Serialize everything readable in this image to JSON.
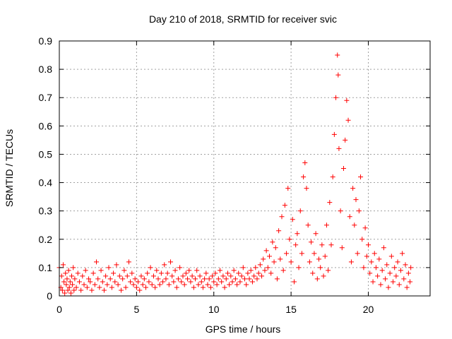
{
  "chart_data": {
    "type": "scatter",
    "title": "Day 210 of 2018, SRMTID for receiver svic",
    "xlabel": "GPS time / hours",
    "ylabel": "SRMTID / TECUs",
    "xlim": [
      0,
      24
    ],
    "ylim": [
      0,
      0.9
    ],
    "x_ticks": [
      0,
      5,
      10,
      15,
      20
    ],
    "y_ticks": [
      0,
      0.1,
      0.2,
      0.3,
      0.4,
      0.5,
      0.6,
      0.7,
      0.8,
      0.9
    ],
    "x_tick_labels": [
      "0",
      "5",
      "10",
      "15",
      "20"
    ],
    "y_tick_labels": [
      "0",
      "0.1",
      "0.2",
      "0.3",
      "0.4",
      "0.5",
      "0.6",
      "0.7",
      "0.8",
      "0.9"
    ],
    "grid": true,
    "marker": "plus",
    "color": "#ff0000",
    "series": [
      {
        "name": "SRMTID",
        "points": [
          [
            0.0,
            0.1
          ],
          [
            0.1,
            0.03
          ],
          [
            0.15,
            0.07
          ],
          [
            0.2,
            0.02
          ],
          [
            0.25,
            0.11
          ],
          [
            0.3,
            0.05
          ],
          [
            0.35,
            0.01
          ],
          [
            0.4,
            0.08
          ],
          [
            0.45,
            0.04
          ],
          [
            0.5,
            0.06
          ],
          [
            0.55,
            0.02
          ],
          [
            0.6,
            0.09
          ],
          [
            0.65,
            0.03
          ],
          [
            0.7,
            0.05
          ],
          [
            0.75,
            0.01
          ],
          [
            0.8,
            0.07
          ],
          [
            0.85,
            0.04
          ],
          [
            0.9,
            0.1
          ],
          [
            0.95,
            0.02
          ],
          [
            1.0,
            0.06
          ],
          [
            1.1,
            0.03
          ],
          [
            1.2,
            0.08
          ],
          [
            1.3,
            0.05
          ],
          [
            1.4,
            0.02
          ],
          [
            1.5,
            0.07
          ],
          [
            1.6,
            0.04
          ],
          [
            1.7,
            0.09
          ],
          [
            1.8,
            0.03
          ],
          [
            1.9,
            0.06
          ],
          [
            2.0,
            0.05
          ],
          [
            2.1,
            0.02
          ],
          [
            2.2,
            0.08
          ],
          [
            2.3,
            0.04
          ],
          [
            2.4,
            0.12
          ],
          [
            2.5,
            0.06
          ],
          [
            2.6,
            0.03
          ],
          [
            2.7,
            0.09
          ],
          [
            2.8,
            0.05
          ],
          [
            2.9,
            0.02
          ],
          [
            3.0,
            0.07
          ],
          [
            3.1,
            0.04
          ],
          [
            3.2,
            0.1
          ],
          [
            3.3,
            0.06
          ],
          [
            3.4,
            0.03
          ],
          [
            3.5,
            0.08
          ],
          [
            3.6,
            0.05
          ],
          [
            3.7,
            0.11
          ],
          [
            3.8,
            0.04
          ],
          [
            3.9,
            0.07
          ],
          [
            4.0,
            0.02
          ],
          [
            4.1,
            0.06
          ],
          [
            4.2,
            0.09
          ],
          [
            4.3,
            0.03
          ],
          [
            4.4,
            0.07
          ],
          [
            4.5,
            0.12
          ],
          [
            4.6,
            0.05
          ],
          [
            4.7,
            0.08
          ],
          [
            4.8,
            0.04
          ],
          [
            4.9,
            0.06
          ],
          [
            5.0,
            0.03
          ],
          [
            5.1,
            0.05
          ],
          [
            5.2,
            0.02
          ],
          [
            5.3,
            0.07
          ],
          [
            5.4,
            0.04
          ],
          [
            5.5,
            0.06
          ],
          [
            5.6,
            0.03
          ],
          [
            5.7,
            0.08
          ],
          [
            5.8,
            0.05
          ],
          [
            5.9,
            0.1
          ],
          [
            6.0,
            0.04
          ],
          [
            6.1,
            0.07
          ],
          [
            6.2,
            0.03
          ],
          [
            6.3,
            0.09
          ],
          [
            6.4,
            0.06
          ],
          [
            6.5,
            0.04
          ],
          [
            6.6,
            0.08
          ],
          [
            6.7,
            0.05
          ],
          [
            6.8,
            0.11
          ],
          [
            6.9,
            0.06
          ],
          [
            7.0,
            0.08
          ],
          [
            7.1,
            0.04
          ],
          [
            7.2,
            0.12
          ],
          [
            7.3,
            0.07
          ],
          [
            7.4,
            0.05
          ],
          [
            7.5,
            0.09
          ],
          [
            7.6,
            0.03
          ],
          [
            7.7,
            0.06
          ],
          [
            7.8,
            0.1
          ],
          [
            7.9,
            0.05
          ],
          [
            8.0,
            0.07
          ],
          [
            8.1,
            0.04
          ],
          [
            8.2,
            0.08
          ],
          [
            8.3,
            0.06
          ],
          [
            8.4,
            0.09
          ],
          [
            8.5,
            0.05
          ],
          [
            8.6,
            0.07
          ],
          [
            8.7,
            0.03
          ],
          [
            8.8,
            0.06
          ],
          [
            8.9,
            0.09
          ],
          [
            9.0,
            0.04
          ],
          [
            9.1,
            0.07
          ],
          [
            9.2,
            0.05
          ],
          [
            9.3,
            0.03
          ],
          [
            9.4,
            0.06
          ],
          [
            9.5,
            0.08
          ],
          [
            9.6,
            0.04
          ],
          [
            9.7,
            0.06
          ],
          [
            9.8,
            0.03
          ],
          [
            9.9,
            0.07
          ],
          [
            10.0,
            0.05
          ],
          [
            10.1,
            0.08
          ],
          [
            10.2,
            0.04
          ],
          [
            10.3,
            0.06
          ],
          [
            10.4,
            0.09
          ],
          [
            10.5,
            0.05
          ],
          [
            10.6,
            0.07
          ],
          [
            10.7,
            0.03
          ],
          [
            10.8,
            0.06
          ],
          [
            10.9,
            0.08
          ],
          [
            11.0,
            0.04
          ],
          [
            11.1,
            0.07
          ],
          [
            11.2,
            0.05
          ],
          [
            11.3,
            0.09
          ],
          [
            11.4,
            0.06
          ],
          [
            11.5,
            0.04
          ],
          [
            11.6,
            0.08
          ],
          [
            11.7,
            0.05
          ],
          [
            11.8,
            0.07
          ],
          [
            11.9,
            0.1
          ],
          [
            12.0,
            0.06
          ],
          [
            12.1,
            0.04
          ],
          [
            12.2,
            0.08
          ],
          [
            12.3,
            0.06
          ],
          [
            12.4,
            0.09
          ],
          [
            12.5,
            0.05
          ],
          [
            12.6,
            0.07
          ],
          [
            12.7,
            0.1
          ],
          [
            12.8,
            0.06
          ],
          [
            12.9,
            0.08
          ],
          [
            13.0,
            0.11
          ],
          [
            13.1,
            0.07
          ],
          [
            13.2,
            0.13
          ],
          [
            13.3,
            0.09
          ],
          [
            13.4,
            0.16
          ],
          [
            13.5,
            0.1
          ],
          [
            13.6,
            0.14
          ],
          [
            13.7,
            0.08
          ],
          [
            13.8,
            0.19
          ],
          [
            13.9,
            0.12
          ],
          [
            14.0,
            0.17
          ],
          [
            14.1,
            0.06
          ],
          [
            14.2,
            0.23
          ],
          [
            14.3,
            0.13
          ],
          [
            14.4,
            0.28
          ],
          [
            14.5,
            0.09
          ],
          [
            14.6,
            0.32
          ],
          [
            14.7,
            0.15
          ],
          [
            14.8,
            0.38
          ],
          [
            14.9,
            0.2
          ],
          [
            15.0,
            0.12
          ],
          [
            15.1,
            0.27
          ],
          [
            15.2,
            0.05
          ],
          [
            15.3,
            0.18
          ],
          [
            15.4,
            0.22
          ],
          [
            15.5,
            0.1
          ],
          [
            15.6,
            0.3
          ],
          [
            15.7,
            0.15
          ],
          [
            15.8,
            0.42
          ],
          [
            15.9,
            0.47
          ],
          [
            16.0,
            0.38
          ],
          [
            16.1,
            0.25
          ],
          [
            16.2,
            0.12
          ],
          [
            16.3,
            0.19
          ],
          [
            16.4,
            0.08
          ],
          [
            16.5,
            0.15
          ],
          [
            16.6,
            0.22
          ],
          [
            16.7,
            0.06
          ],
          [
            16.8,
            0.13
          ],
          [
            16.9,
            0.1
          ],
          [
            17.0,
            0.18
          ],
          [
            17.1,
            0.07
          ],
          [
            17.2,
            0.14
          ],
          [
            17.3,
            0.25
          ],
          [
            17.4,
            0.09
          ],
          [
            17.5,
            0.33
          ],
          [
            17.6,
            0.18
          ],
          [
            17.7,
            0.42
          ],
          [
            17.8,
            0.57
          ],
          [
            17.9,
            0.7
          ],
          [
            18.0,
            0.85
          ],
          [
            18.05,
            0.78
          ],
          [
            18.1,
            0.52
          ],
          [
            18.2,
            0.3
          ],
          [
            18.3,
            0.17
          ],
          [
            18.4,
            0.45
          ],
          [
            18.5,
            0.55
          ],
          [
            18.6,
            0.69
          ],
          [
            18.7,
            0.62
          ],
          [
            18.8,
            0.28
          ],
          [
            18.9,
            0.12
          ],
          [
            19.0,
            0.38
          ],
          [
            19.1,
            0.25
          ],
          [
            19.2,
            0.34
          ],
          [
            19.3,
            0.15
          ],
          [
            19.4,
            0.3
          ],
          [
            19.5,
            0.42
          ],
          [
            19.6,
            0.2
          ],
          [
            19.7,
            0.1
          ],
          [
            19.8,
            0.24
          ],
          [
            19.9,
            0.14
          ],
          [
            20.0,
            0.18
          ],
          [
            20.1,
            0.08
          ],
          [
            20.2,
            0.12
          ],
          [
            20.3,
            0.05
          ],
          [
            20.4,
            0.15
          ],
          [
            20.5,
            0.1
          ],
          [
            20.6,
            0.07
          ],
          [
            20.7,
            0.13
          ],
          [
            20.8,
            0.04
          ],
          [
            20.9,
            0.09
          ],
          [
            21.0,
            0.17
          ],
          [
            21.1,
            0.06
          ],
          [
            21.2,
            0.11
          ],
          [
            21.3,
            0.03
          ],
          [
            21.4,
            0.08
          ],
          [
            21.5,
            0.14
          ],
          [
            21.6,
            0.05
          ],
          [
            21.7,
            0.1
          ],
          [
            21.8,
            0.07
          ],
          [
            21.9,
            0.12
          ],
          [
            22.0,
            0.04
          ],
          [
            22.1,
            0.09
          ],
          [
            22.2,
            0.15
          ],
          [
            22.3,
            0.06
          ],
          [
            22.4,
            0.11
          ],
          [
            22.5,
            0.03
          ],
          [
            22.6,
            0.08
          ],
          [
            22.7,
            0.05
          ],
          [
            22.75,
            0.1
          ]
        ]
      }
    ]
  }
}
